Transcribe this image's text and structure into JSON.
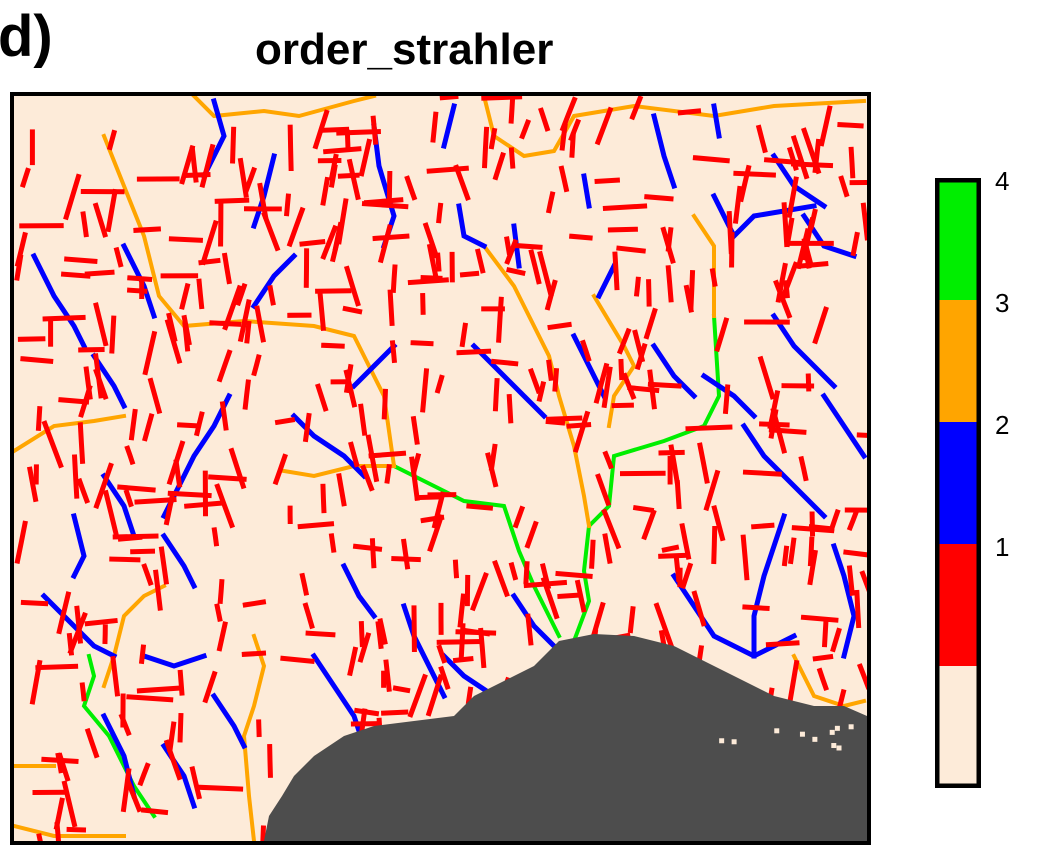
{
  "panel_label": "d)",
  "chart_data": {
    "type": "heatmap",
    "title": "order_strahler",
    "xlabel": "",
    "ylabel": "",
    "legend": {
      "placement": "right",
      "classes": [
        {
          "label": "",
          "value": 0,
          "color": "#fdebd9"
        },
        {
          "label": "1",
          "value": 1,
          "color": "#ff0000"
        },
        {
          "label": "2",
          "value": 2,
          "color": "#0000ff"
        },
        {
          "label": "3",
          "value": 3,
          "color": "#ffa500"
        },
        {
          "label": "4",
          "value": 4,
          "color": "#00ee00"
        }
      ]
    },
    "masked_color": "#4d4d4d",
    "background_color": "#fdebd9",
    "grid": false
  }
}
